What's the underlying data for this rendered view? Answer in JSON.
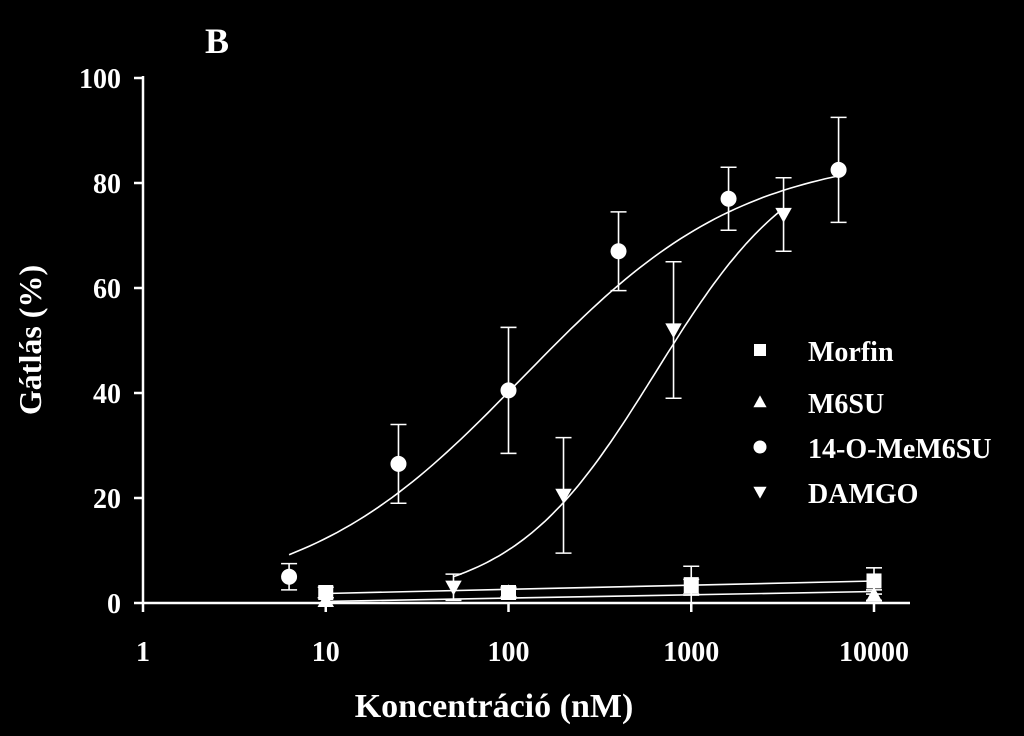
{
  "panel_label": "B",
  "chart_data": {
    "type": "scatter",
    "xlabel": "Koncentráció (nM)",
    "ylabel": "Gátlás (%)",
    "x_scale": "log",
    "xlim": [
      1,
      10000
    ],
    "ylim": [
      0,
      100
    ],
    "x_ticks": [
      1,
      10,
      100,
      1000,
      10000
    ],
    "x_tick_labels": [
      "1",
      "10",
      "100",
      "1000",
      "10000"
    ],
    "y_ticks": [
      0,
      20,
      40,
      60,
      80,
      100
    ],
    "y_tick_labels": [
      "0",
      "20",
      "40",
      "60",
      "80",
      "100"
    ],
    "grid": false,
    "legend_position": "right",
    "series": [
      {
        "name": "Morfin",
        "marker": "square",
        "points": [
          {
            "x": 10,
            "y": 2.0,
            "err": 1.0
          },
          {
            "x": 100,
            "y": 2.0,
            "err": 1.0
          },
          {
            "x": 1000,
            "y": 3.5,
            "err": 3.5
          },
          {
            "x": 10000,
            "y": 4.2,
            "err": 2.5
          }
        ],
        "fit": {
          "kind": "linear",
          "points": [
            [
              10,
              1.8
            ],
            [
              10000,
              4.2
            ]
          ]
        }
      },
      {
        "name": "M6SU",
        "marker": "triangle-up",
        "points": [
          {
            "x": 10,
            "y": 0.5,
            "err": 0.5
          },
          {
            "x": 100,
            "y": 2.0,
            "err": 0.8
          },
          {
            "x": 1000,
            "y": 3.0,
            "err": 1.5
          },
          {
            "x": 10000,
            "y": 1.5,
            "err": 1.0
          }
        ],
        "fit": {
          "kind": "linear",
          "points": [
            [
              10,
              0.3
            ],
            [
              10000,
              2.2
            ]
          ]
        }
      },
      {
        "name": "14-O-MeM6SU",
        "marker": "circle",
        "points": [
          {
            "x": 6.3,
            "y": 5.0,
            "err": 2.5
          },
          {
            "x": 25,
            "y": 26.5,
            "err": 7.5
          },
          {
            "x": 100,
            "y": 40.5,
            "err": 12.0
          },
          {
            "x": 400,
            "y": 67.0,
            "err": 7.5
          },
          {
            "x": 1600,
            "y": 77.0,
            "err": 6.0
          },
          {
            "x": 6400,
            "y": 82.5,
            "err": 10.0
          }
        ],
        "fit": {
          "kind": "sigmoid",
          "bottom": 0,
          "top": 86,
          "ec50": 120,
          "hill": 0.72,
          "xrange": [
            6.3,
            6400
          ]
        }
      },
      {
        "name": "DAMGO",
        "marker": "triangle-down",
        "points": [
          {
            "x": 50,
            "y": 3.0,
            "err": 2.5
          },
          {
            "x": 200,
            "y": 20.5,
            "err": 11.0
          },
          {
            "x": 800,
            "y": 52.0,
            "err": 13.0
          },
          {
            "x": 3200,
            "y": 74.0,
            "err": 7.0
          }
        ],
        "fit": {
          "kind": "sigmoid",
          "bottom": 0,
          "top": 88,
          "ec50": 640,
          "hill": 1.1,
          "xrange": [
            50,
            3200
          ]
        }
      }
    ]
  }
}
